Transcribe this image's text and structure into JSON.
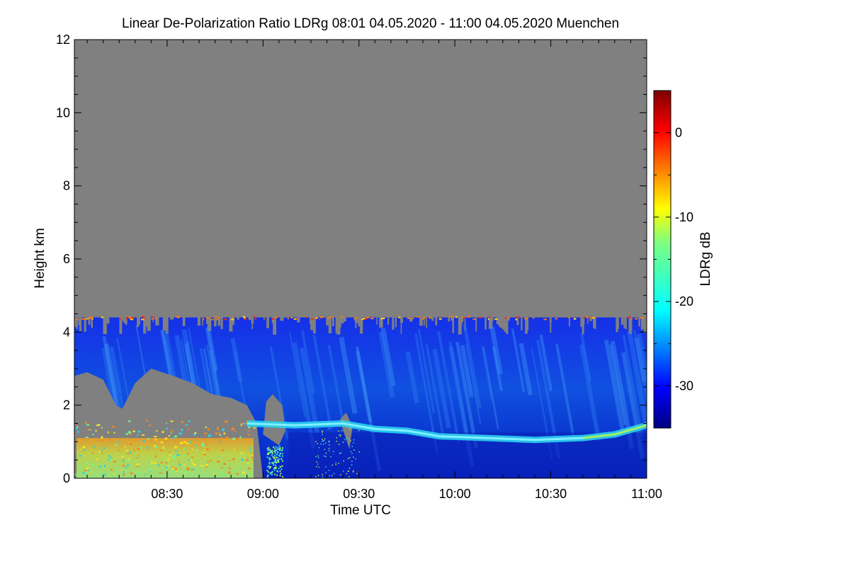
{
  "chart_data": {
    "type": "heatmap",
    "title": "Linear De-Polarization Ratio LDRg   08:01 04.05.2020 - 11:00 04.05.2020 Muenchen",
    "xlabel": "Time UTC",
    "ylabel": "Height km",
    "colorbar_label": "LDRg dB",
    "xlim_minutes_utc": [
      481,
      660
    ],
    "ylim": [
      0,
      12
    ],
    "x_ticks": [
      {
        "minute": 510,
        "label": "08:30"
      },
      {
        "minute": 540,
        "label": "09:00"
      },
      {
        "minute": 570,
        "label": "09:30"
      },
      {
        "minute": 600,
        "label": "10:00"
      },
      {
        "minute": 630,
        "label": "10:30"
      },
      {
        "minute": 660,
        "label": "11:00"
      }
    ],
    "y_ticks": [
      0,
      2,
      4,
      6,
      8,
      10,
      12
    ],
    "colorbar_range": [
      -35,
      5
    ],
    "colorbar_ticks": [
      0,
      -10,
      -20,
      -30
    ],
    "colormap": "jet",
    "no_data_color": "#808080",
    "signal_top_km": 4.4,
    "low_gray_region": [
      {
        "minute": 481,
        "top_km": 2.8
      },
      {
        "minute": 485,
        "top_km": 2.9
      },
      {
        "minute": 490,
        "top_km": 2.7
      },
      {
        "minute": 494,
        "top_km": 2.0
      },
      {
        "minute": 496,
        "top_km": 1.9
      },
      {
        "minute": 500,
        "top_km": 2.6
      },
      {
        "minute": 505,
        "top_km": 3.0
      },
      {
        "minute": 512,
        "top_km": 2.8
      },
      {
        "minute": 518,
        "top_km": 2.6
      },
      {
        "minute": 524,
        "top_km": 2.3
      },
      {
        "minute": 530,
        "top_km": 2.2
      },
      {
        "minute": 535,
        "top_km": 2.0
      },
      {
        "minute": 538,
        "top_km": 1.5
      },
      {
        "minute": 540,
        "top_km": 0.0
      }
    ],
    "melting_layer": [
      {
        "minute": 535,
        "height_km": 1.5
      },
      {
        "minute": 550,
        "height_km": 1.45
      },
      {
        "minute": 565,
        "height_km": 1.5
      },
      {
        "minute": 575,
        "height_km": 1.35
      },
      {
        "minute": 585,
        "height_km": 1.3
      },
      {
        "minute": 595,
        "height_km": 1.15
      },
      {
        "minute": 610,
        "height_km": 1.1
      },
      {
        "minute": 625,
        "height_km": 1.05
      },
      {
        "minute": 640,
        "height_km": 1.1
      },
      {
        "minute": 650,
        "height_km": 1.2
      },
      {
        "minute": 660,
        "height_km": 1.45
      }
    ]
  }
}
